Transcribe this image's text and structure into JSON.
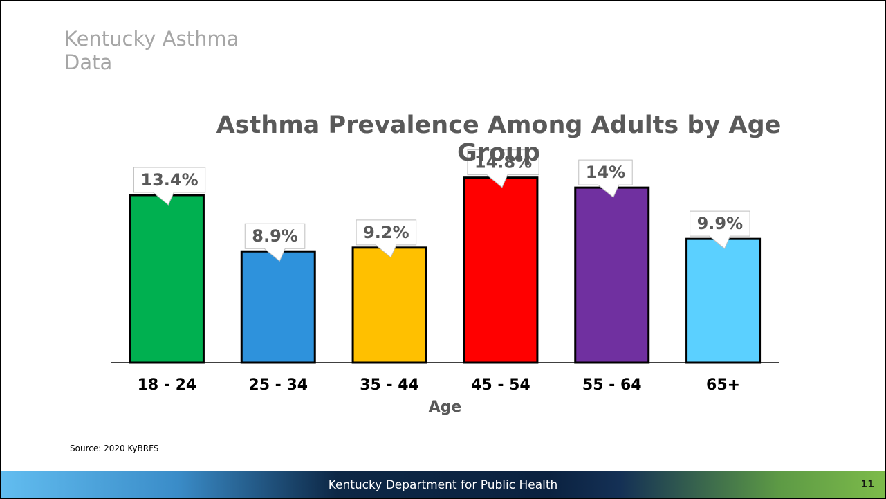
{
  "slide_title": "Kentucky Asthma Data",
  "chart_data": {
    "type": "bar",
    "title": "Asthma Prevalence Among Adults by Age Group",
    "x_label": "Age",
    "categories": [
      "18 - 24",
      "25 - 34",
      "35 - 44",
      "45 - 54",
      "55 - 64",
      "65+"
    ],
    "values": [
      13.4,
      8.9,
      9.2,
      14.8,
      14,
      9.9
    ],
    "value_labels": [
      "13.4%",
      "8.9%",
      "9.2%",
      "14.8%",
      "14%",
      "9.9%"
    ],
    "colors": [
      "#00b050",
      "#2e92dc",
      "#ffc000",
      "#ff0000",
      "#7030a0",
      "#5bd0ff"
    ],
    "ylim": [
      0,
      16
    ]
  },
  "source": "Source: 2020 KyBRFS",
  "footer": "Kentucky Department for Public Health",
  "page_number": "11"
}
